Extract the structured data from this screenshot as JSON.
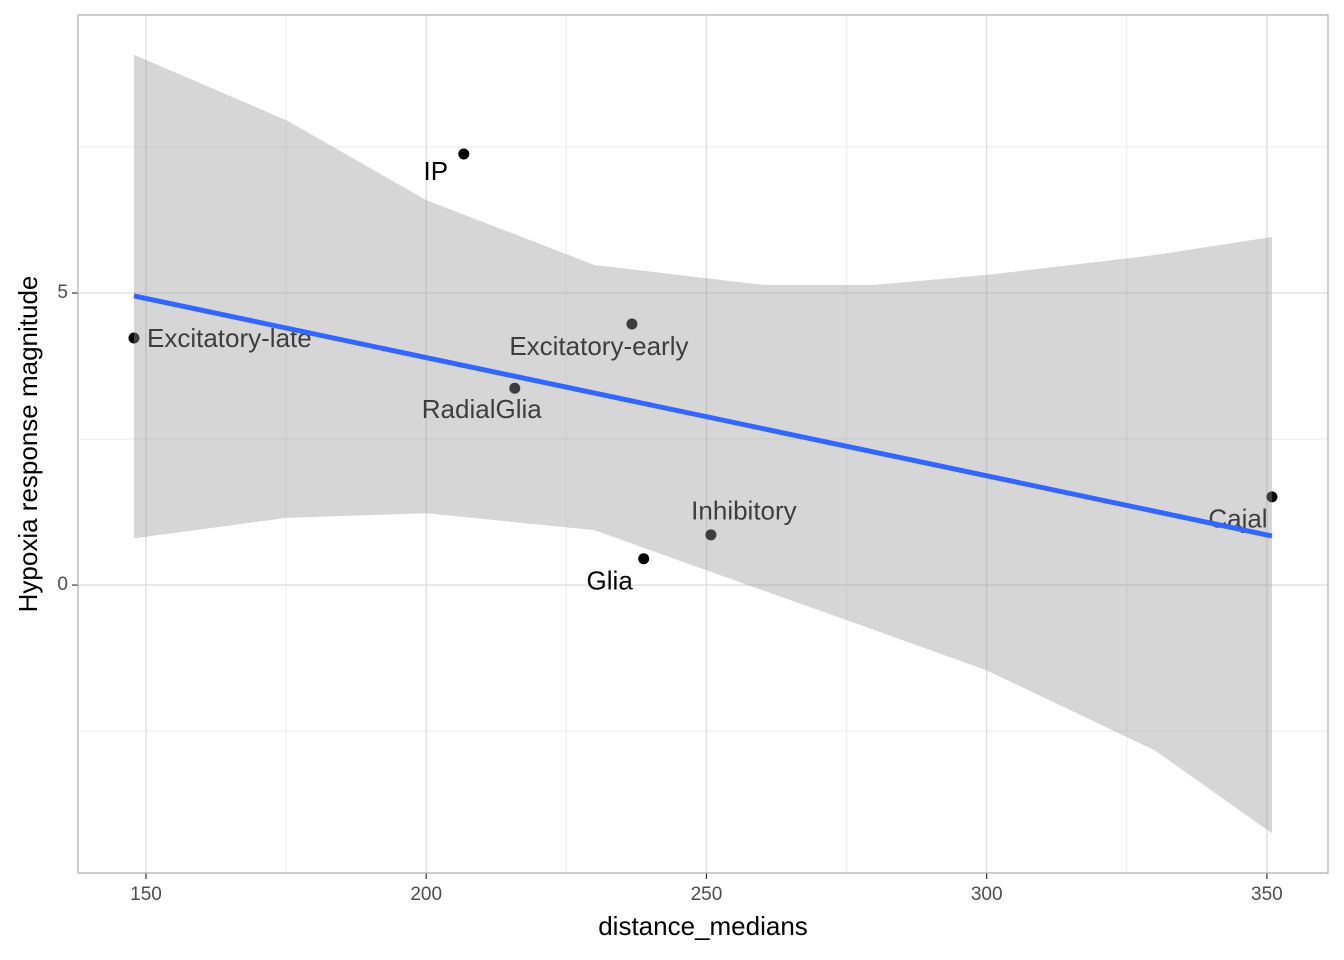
{
  "chart_data": {
    "type": "scatter",
    "x_label": "distance_medians",
    "y_label": "Hypoxia response magnitude",
    "labels": [
      "Excitatory-late",
      "IP",
      "RadialGlia",
      "Excitatory-early",
      "Glia",
      "Inhibitory",
      "Cajal"
    ],
    "x": [
      147.86,
      206.7,
      215.8,
      236.7,
      238.8,
      250.8,
      350.9
    ],
    "y": [
      4.23,
      7.38,
      3.37,
      4.47,
      0.45,
      0.86,
      1.51
    ],
    "color": "#000000",
    "fit": {
      "x": [
        147.86,
        350.9
      ],
      "y": [
        4.95,
        0.84
      ],
      "color": "#3366ff"
    },
    "band": {
      "x": [
        147.86,
        175,
        200,
        230,
        260,
        280,
        300,
        330,
        350.9
      ],
      "upper": [
        9.08,
        7.96,
        6.59,
        5.48,
        5.14,
        5.14,
        5.31,
        5.65,
        5.96
      ],
      "lower": [
        0.8,
        1.15,
        1.23,
        0.94,
        -0.09,
        -0.77,
        -1.46,
        -2.83,
        -4.25
      ],
      "color": "#999999"
    },
    "xlim": [
      137.87,
      360.9
    ],
    "ylim": [
      -4.93,
      9.76
    ],
    "xticks": [
      150,
      200,
      250,
      300,
      350
    ],
    "yticks": [
      0,
      5
    ],
    "x_minor_ticks": [
      175,
      225,
      275,
      325
    ],
    "y_minor_ticks": [
      -2.5,
      2.5,
      7.5
    ],
    "grid": true
  }
}
